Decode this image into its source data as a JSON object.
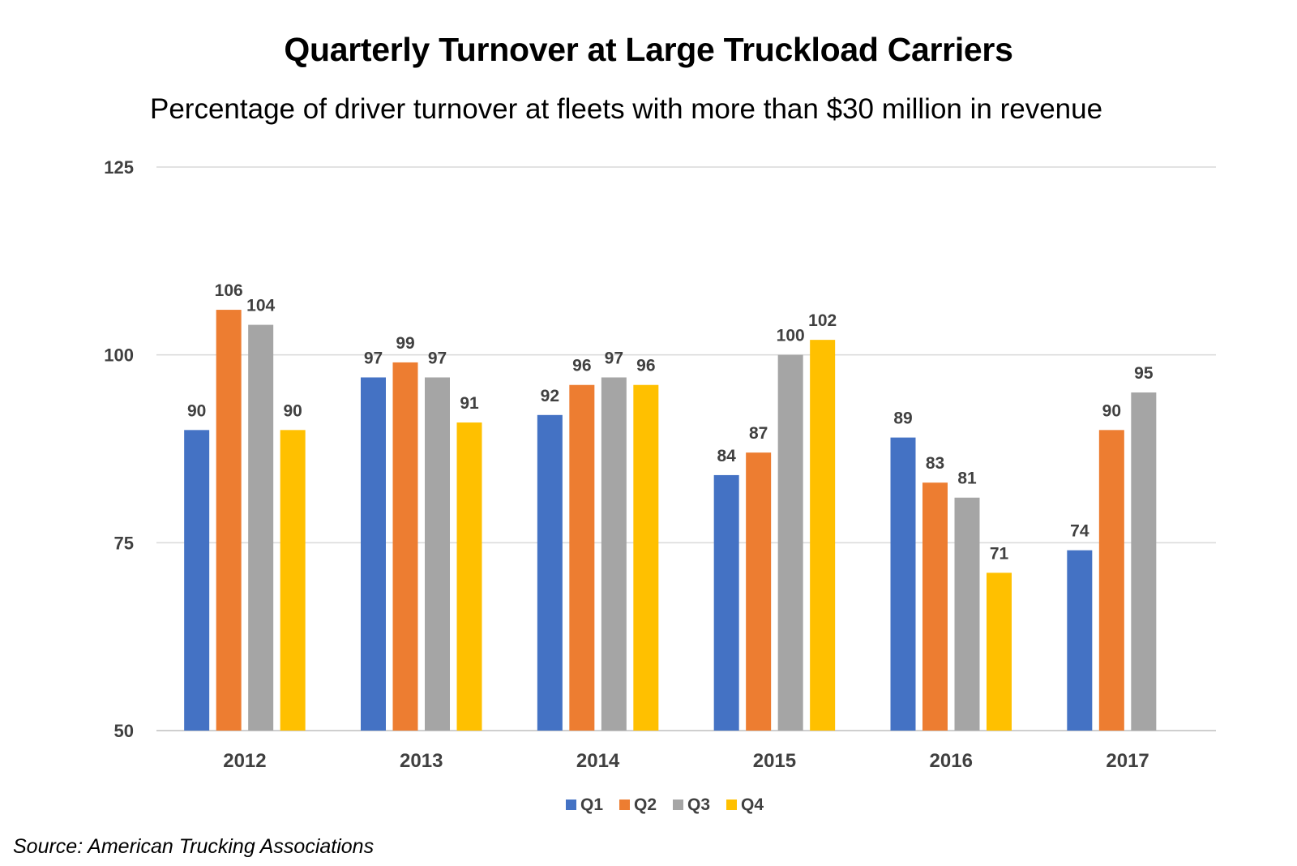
{
  "chart_data": {
    "type": "bar",
    "title": "Quarterly Turnover at Large Truckload Carriers",
    "subtitle": "Percentage of driver turnover at fleets with more than $30 million in revenue",
    "source": "Source: American Trucking Associations",
    "categories": [
      "2012",
      "2013",
      "2014",
      "2015",
      "2016",
      "2017"
    ],
    "ylim": [
      50,
      125
    ],
    "yticks": [
      50,
      75,
      100,
      125
    ],
    "grid": true,
    "legend_position": "bottom",
    "series": [
      {
        "name": "Q1",
        "color": "#4472C4",
        "values": [
          90,
          97,
          92,
          84,
          89,
          74
        ]
      },
      {
        "name": "Q2",
        "color": "#ED7D31",
        "values": [
          106,
          99,
          96,
          87,
          83,
          90
        ]
      },
      {
        "name": "Q3",
        "color": "#A5A5A5",
        "values": [
          104,
          97,
          97,
          100,
          81,
          95
        ]
      },
      {
        "name": "Q4",
        "color": "#FFC000",
        "values": [
          90,
          91,
          96,
          102,
          71,
          null
        ]
      }
    ]
  }
}
